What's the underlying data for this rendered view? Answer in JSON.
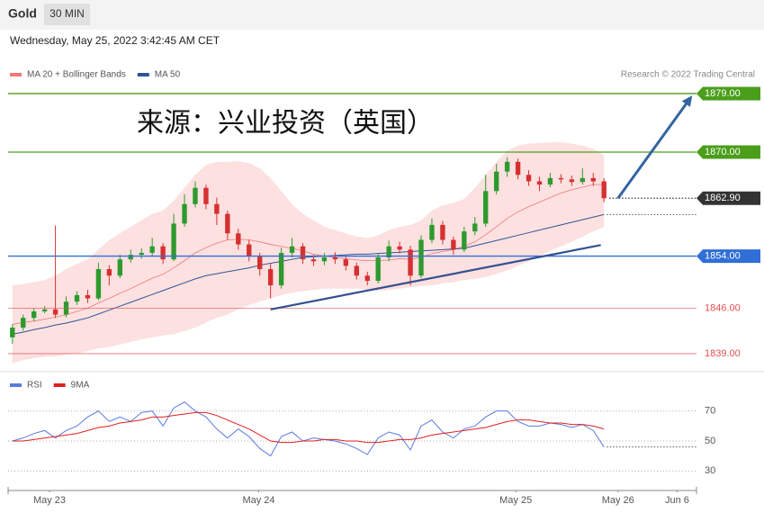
{
  "header": {
    "symbol": "Gold",
    "timeframe": "30 MIN",
    "datetime": "Wednesday, May 25, 2022 3:42:45 AM CET"
  },
  "chart_data": [
    {
      "type": "candlestick",
      "title": "来源：兴业投资（英国）",
      "source": "Research © 2022 Trading Central",
      "up_color": "#2e9a2e",
      "down_color": "#d63030",
      "xlim": [
        -0.4,
        63.6
      ],
      "ylim": [
        1836.5,
        1883.7
      ],
      "ohlc": [
        [
          1841.5,
          1843.5,
          1840.5,
          1843
        ],
        [
          1843,
          1845,
          1842.5,
          1844.5
        ],
        [
          1844.5,
          1846,
          1844,
          1845.5
        ],
        [
          1845.5,
          1846.3,
          1845.2,
          1845.8
        ],
        [
          1845.8,
          1858.7,
          1844.5,
          1845
        ],
        [
          1845,
          1847.8,
          1844.6,
          1847
        ],
        [
          1847,
          1848.6,
          1846.5,
          1848
        ],
        [
          1848,
          1848.8,
          1846.8,
          1847.5
        ],
        [
          1847.5,
          1853,
          1847.2,
          1852
        ],
        [
          1852,
          1852.6,
          1849.5,
          1851
        ],
        [
          1851,
          1854.2,
          1850.6,
          1853.5
        ],
        [
          1853.5,
          1855,
          1853,
          1854.2
        ],
        [
          1854.2,
          1855.2,
          1853.6,
          1854.5
        ],
        [
          1854.5,
          1856.8,
          1854,
          1855.5
        ],
        [
          1855.5,
          1856,
          1852.8,
          1853.5
        ],
        [
          1853.5,
          1860.5,
          1853.2,
          1859
        ],
        [
          1859,
          1863.5,
          1858.5,
          1862
        ],
        [
          1862,
          1865.5,
          1861.5,
          1864.5
        ],
        [
          1864.5,
          1865,
          1861.2,
          1862
        ],
        [
          1862,
          1863,
          1858.8,
          1860.5
        ],
        [
          1860.5,
          1861,
          1856.5,
          1857.5
        ],
        [
          1857.5,
          1858.2,
          1855,
          1855.8
        ],
        [
          1855.8,
          1856.5,
          1853.2,
          1854
        ],
        [
          1854,
          1854.5,
          1851,
          1852
        ],
        [
          1852,
          1852.8,
          1847.5,
          1849.5
        ],
        [
          1849.5,
          1855.3,
          1849,
          1854.5
        ],
        [
          1854.5,
          1856.8,
          1853.8,
          1855.5
        ],
        [
          1855.5,
          1856,
          1852.8,
          1853.5
        ],
        [
          1853.5,
          1854.2,
          1852.5,
          1853.2
        ],
        [
          1853.2,
          1854.5,
          1852.6,
          1853.8
        ],
        [
          1853.8,
          1854.6,
          1852.8,
          1853.5
        ],
        [
          1853.5,
          1854,
          1851.8,
          1852.5
        ],
        [
          1852.5,
          1853,
          1850.4,
          1851
        ],
        [
          1851,
          1851.6,
          1849.5,
          1850.2
        ],
        [
          1850.2,
          1854.5,
          1849.8,
          1853.8
        ],
        [
          1853.8,
          1856.4,
          1853.2,
          1855.5
        ],
        [
          1855.5,
          1856.2,
          1854.4,
          1855
        ],
        [
          1855,
          1855.6,
          1849.5,
          1851
        ],
        [
          1851,
          1857.2,
          1850.6,
          1856.5
        ],
        [
          1856.5,
          1859.8,
          1856,
          1858.8
        ],
        [
          1858.8,
          1859.4,
          1855.8,
          1856.5
        ],
        [
          1856.5,
          1857,
          1854.2,
          1855
        ],
        [
          1855,
          1858.5,
          1854.6,
          1857.8
        ],
        [
          1857.8,
          1860,
          1857.2,
          1859
        ],
        [
          1859,
          1866.5,
          1858.5,
          1864
        ],
        [
          1864,
          1868.2,
          1863.5,
          1867
        ],
        [
          1867,
          1869.2,
          1866.2,
          1868.5
        ],
        [
          1868.5,
          1869,
          1865.8,
          1866.5
        ],
        [
          1866.5,
          1867.2,
          1864.8,
          1865.5
        ],
        [
          1865.5,
          1866.2,
          1864,
          1865
        ],
        [
          1865,
          1866.8,
          1864.6,
          1866
        ],
        [
          1866,
          1866.6,
          1865.2,
          1865.8
        ],
        [
          1865.8,
          1866.4,
          1864.8,
          1865.4
        ],
        [
          1865.4,
          1867.5,
          1865,
          1866
        ],
        [
          1866,
          1866.8,
          1864.8,
          1865.5
        ],
        [
          1865.5,
          1866,
          1862.3,
          1862.9
        ]
      ],
      "series": [
        {
          "name": "MA 20 + Bollinger Bands",
          "color": "#f07878",
          "band_color": "#fde0e0",
          "values": [
            1843.5,
            1843.8,
            1844,
            1844.3,
            1844.6,
            1845,
            1845.5,
            1846,
            1846.8,
            1847.5,
            1848.3,
            1849,
            1849.8,
            1850.6,
            1851.2,
            1852.2,
            1853.3,
            1854.5,
            1855.3,
            1856,
            1856.5,
            1856.6,
            1856.5,
            1856.2,
            1855.8,
            1855.5,
            1855.2,
            1854.8,
            1854.3,
            1854,
            1853.8,
            1853.6,
            1853.4,
            1853.3,
            1853.3,
            1853.4,
            1853.6,
            1853.5,
            1853.8,
            1854.4,
            1854.7,
            1855,
            1855.5,
            1856.2,
            1857.3,
            1858.5,
            1859.8,
            1860.8,
            1861.6,
            1862.3,
            1863,
            1863.7,
            1864.2,
            1864.6,
            1865,
            1865
          ],
          "upper": [
            1849.5,
            1849.7,
            1850,
            1850.3,
            1851,
            1852,
            1852.8,
            1853.5,
            1855,
            1856.5,
            1857.5,
            1858.5,
            1859.5,
            1860.5,
            1861,
            1862.5,
            1864.5,
            1866.5,
            1868,
            1868.5,
            1868.5,
            1868.6,
            1868.3,
            1867.5,
            1866,
            1864,
            1862,
            1860.5,
            1859.5,
            1858.5,
            1858,
            1857.5,
            1857,
            1856.8,
            1857.2,
            1858,
            1858.5,
            1858.8,
            1859.5,
            1861,
            1861.8,
            1862.2,
            1862.8,
            1864.5,
            1866.5,
            1868.5,
            1870.2,
            1871,
            1871.3,
            1871.4,
            1871.5,
            1871.5,
            1871.3,
            1871,
            1870.5,
            1869.5
          ],
          "lower": [
            1837.5,
            1838,
            1838.3,
            1838.5,
            1838.6,
            1838.8,
            1839,
            1839.4,
            1839.8,
            1840,
            1840.4,
            1840.8,
            1841.2,
            1841.5,
            1841.8,
            1842,
            1842.5,
            1843,
            1843.8,
            1844.5,
            1845,
            1845.8,
            1846.5,
            1847,
            1847.5,
            1848,
            1848.4,
            1848.6,
            1848.8,
            1849,
            1849,
            1849,
            1849,
            1848.8,
            1848.6,
            1848.8,
            1849,
            1849.2,
            1849.4,
            1849.5,
            1849.8,
            1850,
            1850.3,
            1850.5,
            1850.8,
            1851.2,
            1851.8,
            1852.5,
            1853.2,
            1854,
            1854.8,
            1855.5,
            1856.2,
            1857,
            1857.8,
            1858.5
          ]
        },
        {
          "name": "MA 50",
          "color": "#2f5597",
          "values": [
            1842,
            1842.3,
            1842.7,
            1843,
            1843.4,
            1843.7,
            1844.1,
            1844.5,
            1845.1,
            1845.7,
            1846.3,
            1846.9,
            1847.5,
            1848.1,
            1848.7,
            1849.3,
            1849.9,
            1850.5,
            1851,
            1851.3,
            1851.6,
            1851.9,
            1852.2,
            1852.6,
            1852.9,
            1853.2,
            1853.5,
            1853.8,
            1853.9,
            1854,
            1854.1,
            1854.2,
            1854.3,
            1854.3,
            1854.4,
            1854.5,
            1854.6,
            1854.7,
            1854.8,
            1854.9,
            1855,
            1855.1,
            1855.2,
            1855.6,
            1856,
            1856.4,
            1856.8,
            1857.2,
            1857.6,
            1858,
            1858.4,
            1858.8,
            1859.2,
            1859.6,
            1860,
            1860.4
          ]
        }
      ],
      "levels": [
        {
          "value": 1879,
          "label": "1879.00",
          "color": "#4a9e1a",
          "line": "solid",
          "tag": true
        },
        {
          "value": 1870,
          "label": "1870.00",
          "color": "#4a9e1a",
          "line": "solid",
          "tag": true
        },
        {
          "value": 1862.9,
          "label": "1862.90",
          "color": "#333333",
          "line": "dotted",
          "tag": true
        },
        {
          "value": 1854,
          "label": "1854.00",
          "color": "#2f6fd6",
          "line": "solid",
          "tag": true
        },
        {
          "value": 1846,
          "label": "1846.00",
          "color": "#e05050",
          "line": "solid",
          "tag": false
        },
        {
          "value": 1839,
          "label": "1839.00",
          "color": "#e05050",
          "line": "solid",
          "tag": false
        }
      ],
      "trendline": {
        "color": "#34508f",
        "x": [
          24,
          54.7
        ],
        "y": [
          1845.8,
          1855.7
        ]
      },
      "arrow": {
        "color": "#34649f",
        "x": [
          56.3,
          63.2
        ],
        "y": [
          1862.9,
          1878.7
        ]
      }
    },
    {
      "type": "line",
      "xlim": [
        -0.4,
        63.6
      ],
      "ylim": [
        20,
        80
      ],
      "yticks": [
        70,
        50,
        30
      ],
      "grid": true,
      "xticks": [
        {
          "value": 3.45,
          "label": "May 23"
        },
        {
          "value": 22.9,
          "label": "May 24"
        },
        {
          "value": 46.8,
          "label": "May 25"
        },
        {
          "value": 56.3,
          "label": "May 26"
        },
        {
          "value": 61.8,
          "label": "Jun 6"
        }
      ],
      "series": [
        {
          "name": "RSI",
          "color": "#5b7be0",
          "values": [
            50,
            52,
            55,
            57,
            52,
            57,
            60,
            66,
            70,
            63,
            66,
            63,
            69,
            70,
            60,
            72,
            76,
            70,
            66,
            58,
            52,
            58,
            53,
            45,
            40,
            53,
            56,
            50,
            52,
            51,
            50,
            48,
            45,
            41,
            52,
            56,
            54,
            44,
            60,
            64,
            56,
            52,
            58,
            60,
            66,
            70,
            70,
            63,
            60,
            60,
            62,
            61,
            59,
            61,
            57,
            46
          ]
        },
        {
          "name": "9MA",
          "color": "#e02020",
          "values": [
            50,
            50,
            51,
            52,
            53,
            54,
            55,
            57,
            59,
            60,
            62,
            63,
            64,
            66,
            66,
            67,
            68,
            69,
            69,
            67,
            64,
            61,
            58,
            54,
            50,
            49,
            49,
            50,
            50,
            51,
            51,
            50,
            50,
            49,
            49,
            50,
            51,
            51,
            52,
            54,
            55,
            56,
            57,
            58,
            59,
            61,
            63,
            64,
            64,
            63,
            62,
            62,
            61,
            61,
            60,
            58
          ]
        }
      ]
    }
  ]
}
